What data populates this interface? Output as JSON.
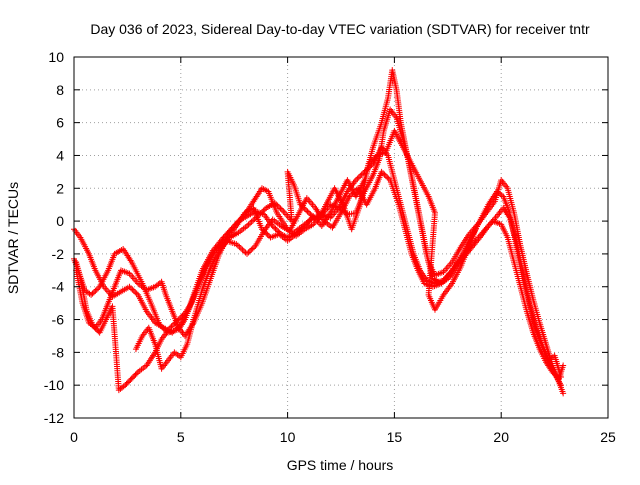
{
  "chart_data": {
    "type": "scatter",
    "title": "Day 036 of 2023, Sidereal Day-to-day VTEC variation (SDTVAR) for receiver tntr",
    "xlabel": "GPS time / hours",
    "ylabel": "SDTVAR / TECUs",
    "xlim": [
      0,
      25
    ],
    "ylim": [
      -12,
      10
    ],
    "xticks": [
      0,
      5,
      10,
      15,
      20,
      25
    ],
    "yticks": [
      -12,
      -10,
      -8,
      -6,
      -4,
      -2,
      0,
      2,
      4,
      6,
      8,
      10
    ],
    "grid": true,
    "legend": "none",
    "marker": "+",
    "color": "#ff0000",
    "series": [
      {
        "values": [
          [
            0.0,
            -2.3
          ],
          [
            0.2,
            -3.0
          ],
          [
            0.5,
            -4.2
          ],
          [
            0.8,
            -4.5
          ],
          [
            1.2,
            -4.0
          ],
          [
            1.6,
            -3.0
          ],
          [
            1.9,
            -2.0
          ],
          [
            2.3,
            -1.7
          ],
          [
            2.7,
            -2.5
          ],
          [
            3.2,
            -3.8
          ],
          [
            3.6,
            -5.0
          ],
          [
            4.0,
            -6.3
          ],
          [
            4.4,
            -6.8
          ],
          [
            4.9,
            -6.6
          ],
          [
            5.2,
            -6.0
          ],
          [
            5.6,
            -4.5
          ],
          [
            6.0,
            -3.0
          ],
          [
            6.5,
            -1.8
          ],
          [
            7.0,
            -1.0
          ],
          [
            7.5,
            -0.3
          ],
          [
            8.0,
            0.4
          ],
          [
            8.4,
            1.2
          ],
          [
            8.8,
            2.0
          ],
          [
            9.1,
            1.8
          ],
          [
            9.5,
            0.5
          ],
          [
            10.0,
            -0.5
          ],
          [
            10.4,
            -0.9
          ],
          [
            10.8,
            -0.5
          ],
          [
            11.2,
            -0.2
          ],
          [
            11.6,
            0.4
          ],
          [
            12.0,
            1.0
          ],
          [
            12.4,
            0.8
          ],
          [
            12.8,
            1.8
          ],
          [
            13.2,
            2.5
          ],
          [
            13.6,
            3.0
          ],
          [
            14.0,
            3.5
          ],
          [
            14.4,
            4.5
          ],
          [
            14.7,
            4.0
          ],
          [
            15.0,
            2.5
          ],
          [
            15.3,
            1.0
          ],
          [
            15.6,
            -0.5
          ],
          [
            15.9,
            -2.0
          ],
          [
            16.2,
            -3.0
          ],
          [
            16.5,
            -3.6
          ],
          [
            16.9,
            -3.8
          ],
          [
            17.3,
            -3.6
          ],
          [
            17.7,
            -3.0
          ],
          [
            18.2,
            -2.0
          ],
          [
            18.6,
            -1.0
          ],
          [
            19.0,
            0.0
          ],
          [
            19.4,
            1.0
          ],
          [
            19.8,
            1.8
          ],
          [
            20.1,
            1.5
          ],
          [
            20.4,
            0.5
          ],
          [
            20.7,
            -1.5
          ],
          [
            21.0,
            -3.5
          ],
          [
            21.3,
            -5.0
          ],
          [
            21.6,
            -6.5
          ],
          [
            21.9,
            -7.5
          ],
          [
            22.2,
            -8.5
          ],
          [
            22.5,
            -9.3
          ],
          [
            22.8,
            -10.0
          ]
        ]
      },
      {
        "values": [
          [
            0.0,
            -0.5
          ],
          [
            0.3,
            -1.0
          ],
          [
            0.7,
            -2.0
          ],
          [
            1.0,
            -3.0
          ],
          [
            1.4,
            -4.0
          ],
          [
            1.8,
            -4.6
          ],
          [
            2.2,
            -4.3
          ],
          [
            2.6,
            -4.0
          ],
          [
            3.0,
            -4.5
          ],
          [
            3.4,
            -5.5
          ],
          [
            3.8,
            -6.2
          ],
          [
            4.2,
            -6.5
          ],
          [
            4.6,
            -6.8
          ],
          [
            5.0,
            -6.3
          ],
          [
            5.4,
            -5.3
          ],
          [
            5.8,
            -4.0
          ],
          [
            6.2,
            -2.8
          ],
          [
            6.6,
            -1.8
          ],
          [
            7.1,
            -1.2
          ],
          [
            7.6,
            -1.4
          ],
          [
            8.1,
            -2.0
          ],
          [
            8.5,
            -1.5
          ],
          [
            8.9,
            -0.6
          ],
          [
            9.3,
            0.1
          ],
          [
            9.7,
            -0.3
          ],
          [
            10.1,
            -0.6
          ],
          [
            10.5,
            0.4
          ],
          [
            10.9,
            1.4
          ],
          [
            11.3,
            0.8
          ],
          [
            11.7,
            0.0
          ],
          [
            12.1,
            -0.4
          ],
          [
            12.5,
            0.5
          ],
          [
            12.9,
            1.5
          ],
          [
            13.3,
            2.0
          ],
          [
            13.7,
            1.0
          ],
          [
            14.1,
            2.0
          ],
          [
            14.4,
            3.0
          ],
          [
            14.8,
            2.5
          ],
          [
            15.2,
            1.0
          ],
          [
            15.5,
            -0.5
          ],
          [
            15.8,
            -2.0
          ],
          [
            16.1,
            -3.0
          ],
          [
            16.4,
            -3.8
          ],
          [
            16.8,
            -4.0
          ],
          [
            17.2,
            -3.8
          ],
          [
            17.6,
            -3.2
          ],
          [
            18.0,
            -2.5
          ],
          [
            18.4,
            -1.8
          ],
          [
            18.8,
            -1.2
          ],
          [
            19.2,
            -0.6
          ],
          [
            19.6,
            0.0
          ],
          [
            20.0,
            -0.2
          ],
          [
            20.3,
            -1.0
          ],
          [
            20.6,
            -2.5
          ],
          [
            20.9,
            -4.0
          ],
          [
            21.2,
            -5.5
          ],
          [
            21.5,
            -6.8
          ],
          [
            21.8,
            -7.8
          ],
          [
            22.1,
            -8.6
          ],
          [
            22.4,
            -9.2
          ],
          [
            22.7,
            -9.6
          ],
          [
            22.9,
            -8.8
          ]
        ]
      },
      {
        "values": [
          [
            0.1,
            -3.0
          ],
          [
            0.4,
            -5.0
          ],
          [
            0.7,
            -6.2
          ],
          [
            1.0,
            -6.5
          ],
          [
            1.3,
            -6.0
          ],
          [
            1.6,
            -5.0
          ],
          [
            1.9,
            -4.0
          ],
          [
            2.2,
            -3.0
          ],
          [
            2.6,
            -3.2
          ],
          [
            3.0,
            -3.8
          ],
          [
            3.4,
            -4.2
          ],
          [
            3.8,
            -4.0
          ],
          [
            4.1,
            -3.7
          ],
          [
            4.3,
            -4.5
          ],
          [
            4.6,
            -5.5
          ],
          [
            4.9,
            -6.5
          ],
          [
            5.2,
            -7.0
          ],
          [
            5.6,
            -6.2
          ],
          [
            6.0,
            -5.0
          ],
          [
            6.4,
            -3.5
          ],
          [
            6.8,
            -2.0
          ],
          [
            7.2,
            -1.0
          ],
          [
            7.6,
            -0.3
          ],
          [
            8.0,
            0.5
          ],
          [
            8.4,
            0.8
          ],
          [
            8.8,
            -0.5
          ],
          [
            9.2,
            -1.0
          ],
          [
            9.6,
            -0.8
          ],
          [
            10.0,
            -1.2
          ],
          [
            10.4,
            -0.8
          ],
          [
            10.8,
            -0.3
          ],
          [
            11.2,
            0.3
          ],
          [
            11.6,
            -0.3
          ],
          [
            12.0,
            0.5
          ],
          [
            12.4,
            1.5
          ],
          [
            12.8,
            2.5
          ],
          [
            13.2,
            1.5
          ],
          [
            13.6,
            2.5
          ],
          [
            14.0,
            4.5
          ],
          [
            14.4,
            6.0
          ],
          [
            14.7,
            7.5
          ],
          [
            14.9,
            9.2
          ],
          [
            15.1,
            8.0
          ],
          [
            15.3,
            6.0
          ],
          [
            15.6,
            4.0
          ],
          [
            15.9,
            2.0
          ],
          [
            16.2,
            0.0
          ],
          [
            16.5,
            -2.0
          ],
          [
            16.8,
            -3.5
          ],
          [
            17.2,
            -3.8
          ],
          [
            17.6,
            -3.4
          ],
          [
            18.0,
            -2.6
          ],
          [
            18.5,
            -1.8
          ],
          [
            19.0,
            -1.0
          ],
          [
            19.4,
            -0.3
          ],
          [
            19.8,
            0.3
          ],
          [
            20.1,
            0.8
          ],
          [
            20.4,
            0.2
          ],
          [
            20.7,
            -1.2
          ],
          [
            21.0,
            -3.0
          ],
          [
            21.3,
            -4.8
          ],
          [
            21.6,
            -6.3
          ],
          [
            21.9,
            -7.5
          ],
          [
            22.2,
            -8.5
          ],
          [
            22.5,
            -8.2
          ],
          [
            22.8,
            -9.5
          ]
        ]
      },
      {
        "values": [
          [
            0.1,
            -2.5
          ],
          [
            0.3,
            -3.5
          ],
          [
            0.6,
            -5.5
          ],
          [
            0.9,
            -6.4
          ],
          [
            1.2,
            -6.8
          ],
          [
            1.5,
            -6.0
          ],
          [
            1.8,
            -5.2
          ],
          [
            2.1,
            -10.3
          ],
          [
            2.4,
            -10.0
          ],
          [
            2.7,
            -9.6
          ],
          [
            3.0,
            -9.2
          ],
          [
            3.4,
            -8.8
          ],
          [
            3.8,
            -8.0
          ],
          [
            4.1,
            -7.2
          ],
          [
            4.5,
            -6.5
          ],
          [
            4.9,
            -6.0
          ],
          [
            5.2,
            -5.6
          ],
          [
            5.5,
            -5.0
          ],
          [
            5.8,
            -4.0
          ],
          [
            6.1,
            -3.0
          ],
          [
            6.5,
            -2.0
          ],
          [
            6.9,
            -1.3
          ],
          [
            7.3,
            -0.6
          ],
          [
            7.7,
            0.0
          ],
          [
            8.1,
            0.3
          ],
          [
            8.5,
            0.6
          ],
          [
            8.9,
            0.4
          ],
          [
            9.3,
            -0.3
          ],
          [
            9.7,
            -0.8
          ],
          [
            10.0,
            -1.0
          ],
          [
            10.4,
            -0.6
          ],
          [
            10.8,
            -0.2
          ],
          [
            11.2,
            0.2
          ],
          [
            11.6,
            0.4
          ],
          [
            12.0,
            0.2
          ],
          [
            12.4,
            0.8
          ],
          [
            12.8,
            0.4
          ],
          [
            13.2,
            0.5
          ],
          [
            13.6,
            1.8
          ],
          [
            14.0,
            2.8
          ],
          [
            14.3,
            3.8
          ],
          [
            14.5,
            5.5
          ],
          [
            14.8,
            6.8
          ],
          [
            15.1,
            6.3
          ],
          [
            15.4,
            5.0
          ],
          [
            15.7,
            3.5
          ],
          [
            16.0,
            1.5
          ],
          [
            16.3,
            -0.5
          ],
          [
            16.6,
            -2.5
          ],
          [
            16.9,
            -3.3
          ],
          [
            17.3,
            -3.1
          ],
          [
            17.7,
            -2.5
          ],
          [
            18.1,
            -1.6
          ],
          [
            18.5,
            -0.8
          ],
          [
            18.9,
            -0.2
          ],
          [
            19.3,
            0.5
          ],
          [
            19.7,
            1.2
          ],
          [
            20.0,
            2.5
          ],
          [
            20.3,
            2.0
          ],
          [
            20.6,
            0.5
          ],
          [
            20.9,
            -1.5
          ],
          [
            21.2,
            -3.2
          ],
          [
            21.5,
            -4.8
          ],
          [
            21.8,
            -6.2
          ],
          [
            22.1,
            -7.5
          ],
          [
            22.4,
            -8.8
          ],
          [
            22.7,
            -9.8
          ],
          [
            22.9,
            -10.5
          ]
        ]
      },
      {
        "values": [
          [
            2.9,
            -7.8
          ],
          [
            3.2,
            -7.0
          ],
          [
            3.5,
            -6.5
          ],
          [
            3.8,
            -7.5
          ],
          [
            4.1,
            -9.0
          ],
          [
            4.7,
            -8.0
          ],
          [
            5.0,
            -8.3
          ],
          [
            5.3,
            -7.5
          ],
          [
            5.6,
            -6.0
          ],
          [
            6.0,
            -4.2
          ],
          [
            6.4,
            -2.8
          ],
          [
            6.8,
            -1.8
          ],
          [
            7.3,
            -1.0
          ],
          [
            7.7,
            -0.7
          ],
          [
            8.1,
            -0.3
          ],
          [
            8.6,
            0.3
          ],
          [
            9.0,
            0.8
          ],
          [
            9.4,
            1.1
          ],
          [
            9.8,
            0.6
          ],
          [
            10.2,
            0.0
          ],
          [
            10.0,
            3.0
          ],
          [
            10.3,
            2.2
          ],
          [
            10.6,
            1.0
          ],
          [
            11.0,
            0.5
          ],
          [
            11.4,
            0.0
          ],
          [
            11.8,
            1.0
          ],
          [
            12.2,
            2.0
          ],
          [
            12.6,
            1.0
          ],
          [
            13.0,
            -0.5
          ],
          [
            13.4,
            1.0
          ],
          [
            13.8,
            3.5
          ],
          [
            14.2,
            4.0
          ],
          [
            14.6,
            4.2
          ],
          [
            15.0,
            5.5
          ],
          [
            15.4,
            4.5
          ],
          [
            15.8,
            3.5
          ],
          [
            16.2,
            2.5
          ],
          [
            16.6,
            1.5
          ],
          [
            16.9,
            0.5
          ],
          [
            16.6,
            -4.5
          ],
          [
            16.9,
            -5.4
          ],
          [
            17.3,
            -4.5
          ],
          [
            17.7,
            -3.8
          ],
          [
            18.1,
            -2.8
          ],
          [
            18.5,
            -1.5
          ],
          [
            18.8,
            -0.5
          ]
        ]
      }
    ]
  }
}
